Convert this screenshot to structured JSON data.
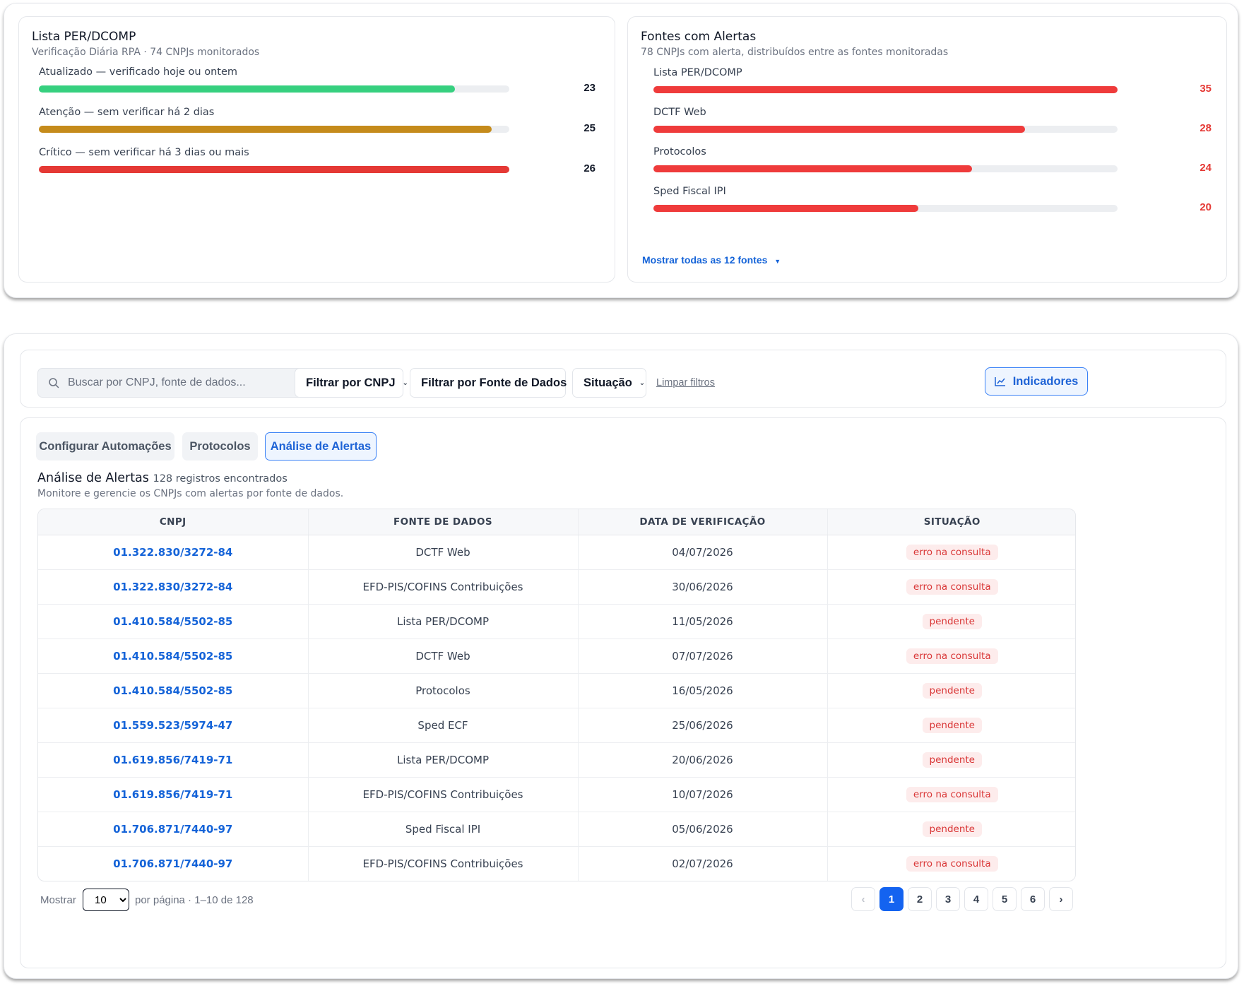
{
  "lista": {
    "title": "Lista PER/DCOMP",
    "subtitle": "Verificação Diária RPA · 74 CNPJs monitorados",
    "bars": [
      {
        "label": "Atualizado — verificado hoje ou ontem",
        "value": "23",
        "fraction": 0.885,
        "color": "#36d07f"
      },
      {
        "label": "Atenção — sem verificar há 2 dias",
        "value": "25",
        "fraction": 0.962,
        "color": "#c58b1b"
      },
      {
        "label": "Crítico — sem verificar há 3 dias ou mais",
        "value": "26",
        "fraction": 1.0,
        "color": "#e53935"
      }
    ]
  },
  "fontes": {
    "title": "Fontes com Alertas",
    "subtitle": "78 CNPJs com alerta, distribuídos entre as fontes monitoradas",
    "bars": [
      {
        "label": "Lista PER/DCOMP",
        "value": "35",
        "fraction": 1.0,
        "color": "#ef3b3b"
      },
      {
        "label": "DCTF Web",
        "value": "28",
        "fraction": 0.8,
        "color": "#ef3b3b"
      },
      {
        "label": "Protocolos",
        "value": "24",
        "fraction": 0.686,
        "color": "#ef3b3b"
      },
      {
        "label": "Sped Fiscal IPI",
        "value": "20",
        "fraction": 0.571,
        "color": "#ef3b3b"
      }
    ],
    "show_more": "Mostrar todas as 12 fontes"
  },
  "filters": {
    "search_placeholder": "Buscar por CNPJ, fonte de dados...",
    "cnpj": "Filtrar por CNPJ",
    "fonte": "Filtrar por Fonte de Dados",
    "situacao": "Situação",
    "clear": "Limpar filtros",
    "indicators": "Indicadores"
  },
  "tabs": [
    "Configurar Automações",
    "Protocolos",
    "Análise de Alertas"
  ],
  "section": {
    "title": "Análise de Alertas",
    "count": "128 registros encontrados",
    "subtitle": "Monitore e gerencie os CNPJs com alertas por fonte de dados."
  },
  "table": {
    "headers": [
      "CNPJ",
      "FONTE DE DADOS",
      "DATA DE VERIFICAÇÃO",
      "SITUAÇÃO"
    ],
    "rows": [
      {
        "cnpj": "01.322.830/3272-84",
        "fonte": "DCTF Web",
        "data": "04/07/2026",
        "situacao": "erro na consulta"
      },
      {
        "cnpj": "01.322.830/3272-84",
        "fonte": "EFD-PIS/COFINS Contribuições",
        "data": "30/06/2026",
        "situacao": "erro na consulta"
      },
      {
        "cnpj": "01.410.584/5502-85",
        "fonte": "Lista PER/DCOMP",
        "data": "11/05/2026",
        "situacao": "pendente"
      },
      {
        "cnpj": "01.410.584/5502-85",
        "fonte": "DCTF Web",
        "data": "07/07/2026",
        "situacao": "erro na consulta"
      },
      {
        "cnpj": "01.410.584/5502-85",
        "fonte": "Protocolos",
        "data": "16/05/2026",
        "situacao": "pendente"
      },
      {
        "cnpj": "01.559.523/5974-47",
        "fonte": "Sped ECF",
        "data": "25/06/2026",
        "situacao": "pendente"
      },
      {
        "cnpj": "01.619.856/7419-71",
        "fonte": "Lista PER/DCOMP",
        "data": "20/06/2026",
        "situacao": "pendente"
      },
      {
        "cnpj": "01.619.856/7419-71",
        "fonte": "EFD-PIS/COFINS Contribuições",
        "data": "10/07/2026",
        "situacao": "erro na consulta"
      },
      {
        "cnpj": "01.706.871/7440-97",
        "fonte": "Sped Fiscal IPI",
        "data": "05/06/2026",
        "situacao": "pendente"
      },
      {
        "cnpj": "01.706.871/7440-97",
        "fonte": "EFD-PIS/COFINS Contribuições",
        "data": "02/07/2026",
        "situacao": "erro na consulta"
      }
    ]
  },
  "pagination": {
    "show_label": "Mostrar",
    "per_page": "10",
    "per_page_label": "por página · 1–10 de 128",
    "prev": "‹",
    "next": "›",
    "pages": [
      "1",
      "2",
      "3",
      "4",
      "5",
      "6"
    ],
    "current": "1"
  }
}
